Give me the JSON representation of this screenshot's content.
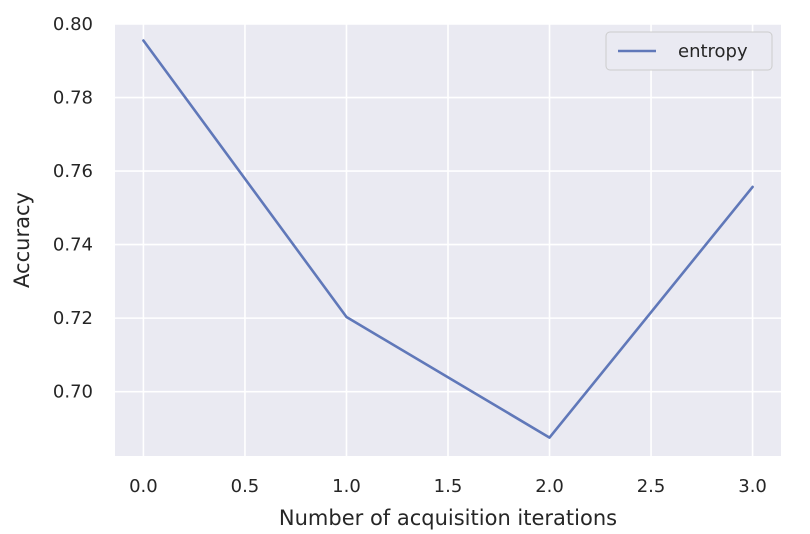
{
  "chart_data": {
    "type": "line",
    "title": "",
    "xlabel": "Number of acquisition iterations",
    "ylabel": "Accuracy",
    "xlim": [
      -0.14,
      3.14
    ],
    "ylim": [
      0.6825,
      0.8
    ],
    "xticks": [
      0.0,
      0.5,
      1.0,
      1.5,
      2.0,
      2.5,
      3.0
    ],
    "xtick_labels": [
      "0.0",
      "0.5",
      "1.0",
      "1.5",
      "2.0",
      "2.5",
      "3.0"
    ],
    "yticks": [
      0.7,
      0.72,
      0.74,
      0.76,
      0.78,
      0.8
    ],
    "ytick_labels": [
      "0.70",
      "0.72",
      "0.74",
      "0.76",
      "0.78",
      "0.80"
    ],
    "grid": true,
    "legend_position": "top-right",
    "series": [
      {
        "name": "entropy",
        "color": "#6078b9",
        "x": [
          0,
          1,
          2,
          3
        ],
        "y": [
          0.7955,
          0.7203,
          0.6875,
          0.7557
        ]
      }
    ],
    "colors": {
      "plot_background": "#eaeaf2",
      "grid": "#ffffff"
    }
  }
}
